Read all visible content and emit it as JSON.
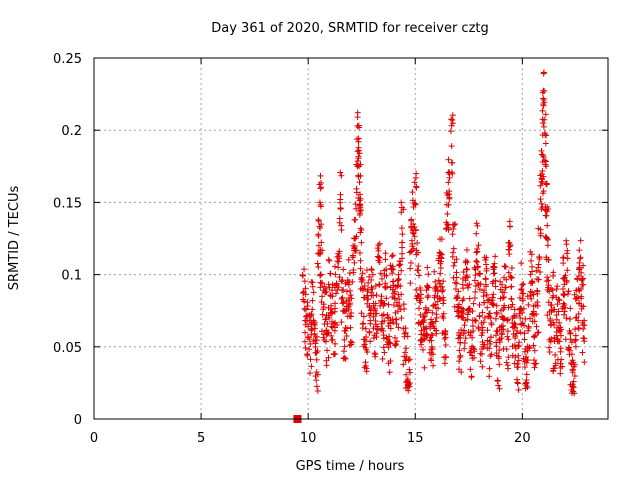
{
  "chart_data": {
    "type": "scatter",
    "title": "Day 361 of 2020, SRMTID for receiver cztg",
    "xlabel": "GPS time / hours",
    "ylabel": "SRMTID / TECUs",
    "xlim": [
      0,
      24
    ],
    "ylim": [
      0,
      0.25
    ],
    "x_ticks": [
      0,
      5,
      10,
      15,
      20
    ],
    "y_ticks": [
      0,
      0.05,
      0.1,
      0.15,
      0.2,
      0.25
    ],
    "x_tick_labels": [
      "0",
      "5",
      "10",
      "15",
      "20"
    ],
    "y_tick_labels": [
      "0",
      "0.05",
      "0.1",
      "0.15",
      "0.2",
      "0.25"
    ],
    "grid": true,
    "marker": "+",
    "color": "#e00000",
    "square_marker": {
      "x": 9.5,
      "y": 0.0
    },
    "series": [
      {
        "name": "SRMTID",
        "points": [
          [
            9.8,
            0.088
          ],
          [
            9.9,
            0.071
          ],
          [
            10.0,
            0.064
          ],
          [
            10.1,
            0.052
          ],
          [
            10.2,
            0.082
          ],
          [
            10.3,
            0.059
          ],
          [
            10.4,
            0.041
          ],
          [
            10.5,
            0.12
          ],
          [
            10.55,
            0.15
          ],
          [
            10.6,
            0.1
          ],
          [
            10.7,
            0.076
          ],
          [
            10.8,
            0.069
          ],
          [
            10.9,
            0.059
          ],
          [
            11.0,
            0.091
          ],
          [
            11.1,
            0.073
          ],
          [
            11.2,
            0.066
          ],
          [
            11.3,
            0.087
          ],
          [
            11.4,
            0.105
          ],
          [
            11.5,
            0.152
          ],
          [
            11.6,
            0.084
          ],
          [
            11.7,
            0.061
          ],
          [
            11.8,
            0.078
          ],
          [
            11.9,
            0.093
          ],
          [
            12.0,
            0.071
          ],
          [
            12.1,
            0.112
          ],
          [
            12.2,
            0.138
          ],
          [
            12.3,
            0.175
          ],
          [
            12.35,
            0.192
          ],
          [
            12.4,
            0.164
          ],
          [
            12.45,
            0.132
          ],
          [
            12.5,
            0.095
          ],
          [
            12.6,
            0.071
          ],
          [
            12.7,
            0.054
          ],
          [
            12.8,
            0.083
          ],
          [
            12.9,
            0.066
          ],
          [
            13.0,
            0.09
          ],
          [
            13.1,
            0.058
          ],
          [
            13.2,
            0.073
          ],
          [
            13.3,
            0.112
          ],
          [
            13.4,
            0.082
          ],
          [
            13.5,
            0.061
          ],
          [
            13.6,
            0.094
          ],
          [
            13.7,
            0.072
          ],
          [
            13.8,
            0.053
          ],
          [
            13.9,
            0.104
          ],
          [
            14.0,
            0.087
          ],
          [
            14.1,
            0.069
          ],
          [
            14.2,
            0.078
          ],
          [
            14.3,
            0.092
          ],
          [
            14.4,
            0.128
          ],
          [
            14.5,
            0.059
          ],
          [
            14.6,
            0.043
          ],
          [
            14.7,
            0.024
          ],
          [
            14.8,
            0.116
          ],
          [
            14.9,
            0.135
          ],
          [
            15.0,
            0.149
          ],
          [
            15.1,
            0.103
          ],
          [
            15.2,
            0.082
          ],
          [
            15.3,
            0.067
          ],
          [
            15.4,
            0.055
          ],
          [
            15.5,
            0.076
          ],
          [
            15.6,
            0.091
          ],
          [
            15.7,
            0.063
          ],
          [
            15.8,
            0.058
          ],
          [
            15.9,
            0.084
          ],
          [
            16.0,
            0.07
          ],
          [
            16.1,
            0.096
          ],
          [
            16.2,
            0.109
          ],
          [
            16.3,
            0.08
          ],
          [
            16.4,
            0.061
          ],
          [
            16.5,
            0.142
          ],
          [
            16.6,
            0.167
          ],
          [
            16.7,
            0.189
          ],
          [
            16.8,
            0.118
          ],
          [
            16.9,
            0.09
          ],
          [
            17.0,
            0.071
          ],
          [
            17.1,
            0.053
          ],
          [
            17.2,
            0.082
          ],
          [
            17.3,
            0.065
          ],
          [
            17.4,
            0.099
          ],
          [
            17.5,
            0.074
          ],
          [
            17.6,
            0.046
          ],
          [
            17.7,
            0.061
          ],
          [
            17.8,
            0.088
          ],
          [
            17.9,
            0.116
          ],
          [
            18.0,
            0.079
          ],
          [
            18.1,
            0.058
          ],
          [
            18.2,
            0.067
          ],
          [
            18.3,
            0.093
          ],
          [
            18.4,
            0.071
          ],
          [
            18.5,
            0.052
          ],
          [
            18.6,
            0.084
          ],
          [
            18.7,
            0.101
          ],
          [
            18.8,
            0.061
          ],
          [
            18.9,
            0.042
          ],
          [
            19.0,
            0.075
          ],
          [
            19.1,
            0.069
          ],
          [
            19.2,
            0.091
          ],
          [
            19.3,
            0.057
          ],
          [
            19.4,
            0.122
          ],
          [
            19.5,
            0.083
          ],
          [
            19.6,
            0.064
          ],
          [
            19.7,
            0.049
          ],
          [
            19.8,
            0.036
          ],
          [
            19.9,
            0.07
          ],
          [
            20.0,
            0.087
          ],
          [
            20.1,
            0.055
          ],
          [
            20.2,
            0.027
          ],
          [
            20.3,
            0.063
          ],
          [
            20.4,
            0.094
          ],
          [
            20.5,
            0.073
          ],
          [
            20.6,
            0.058
          ],
          [
            20.7,
            0.081
          ],
          [
            20.8,
            0.112
          ],
          [
            20.9,
            0.149
          ],
          [
            20.95,
            0.178
          ],
          [
            21.0,
            0.221
          ],
          [
            21.05,
            0.198
          ],
          [
            21.1,
            0.163
          ],
          [
            21.15,
            0.125
          ],
          [
            21.2,
            0.091
          ],
          [
            21.3,
            0.068
          ],
          [
            21.4,
            0.084
          ],
          [
            21.5,
            0.054
          ],
          [
            21.6,
            0.072
          ],
          [
            21.7,
            0.063
          ],
          [
            21.8,
            0.049
          ],
          [
            21.9,
            0.09
          ],
          [
            22.0,
            0.077
          ],
          [
            22.1,
            0.103
          ],
          [
            22.2,
            0.061
          ],
          [
            22.3,
            0.038
          ],
          [
            22.4,
            0.022
          ],
          [
            22.5,
            0.07
          ],
          [
            22.6,
            0.084
          ],
          [
            22.7,
            0.111
          ],
          [
            22.8,
            0.093
          ],
          [
            22.85,
            0.056
          ]
        ]
      }
    ]
  }
}
